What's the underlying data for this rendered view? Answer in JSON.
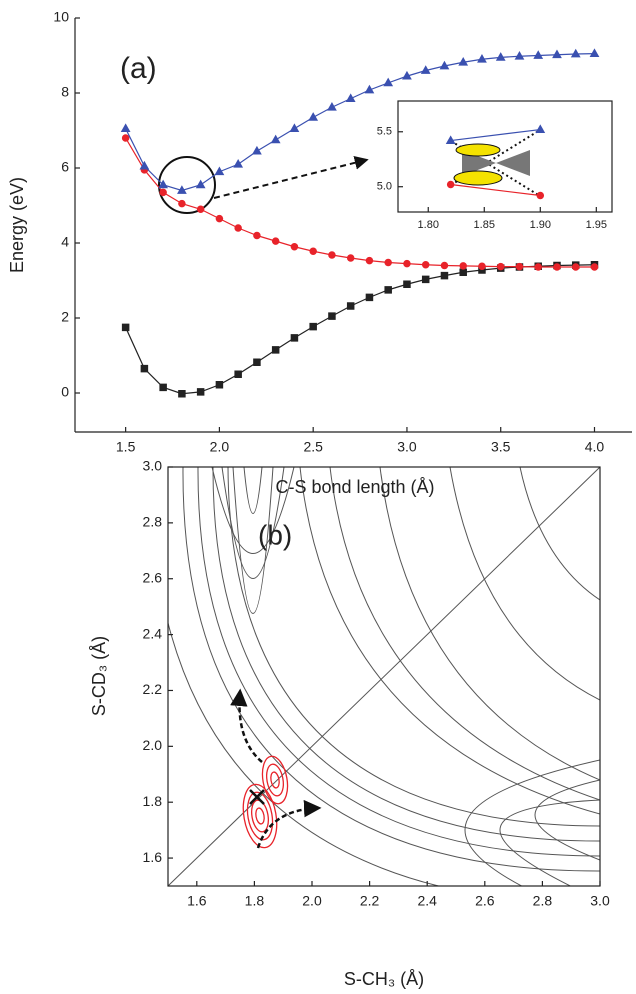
{
  "chart_data": [
    {
      "type": "line",
      "annotation": "(a)",
      "x_label": "C-S bond length (Å)",
      "y_label": "Energy (eV)",
      "x": [
        1.5,
        1.6,
        1.7,
        1.8,
        1.9,
        2.0,
        2.1,
        2.2,
        2.3,
        2.4,
        2.5,
        2.6,
        2.7,
        2.8,
        2.9,
        3.0,
        3.1,
        3.2,
        3.3,
        3.4,
        3.5,
        3.6,
        3.7,
        3.8,
        3.9,
        4.0
      ],
      "xlim": [
        1.23,
        4.2
      ],
      "ylim": [
        -1.04,
        10
      ],
      "xticks": [
        1.5,
        {
          "value": 2,
          "label": "2.0"
        },
        2.5,
        {
          "value": 3,
          "label": "3.0"
        },
        3.5,
        {
          "value": 4,
          "label": "4.0"
        }
      ],
      "yticks": [
        0,
        2,
        4,
        6,
        8,
        10
      ],
      "series": [
        {
          "color": "#222222",
          "marker": "square",
          "values": [
            1.75,
            0.65,
            0.15,
            -0.02,
            0.03,
            0.22,
            0.5,
            0.82,
            1.15,
            1.47,
            1.77,
            2.05,
            2.32,
            2.55,
            2.75,
            2.9,
            3.03,
            3.13,
            3.22,
            3.28,
            3.33,
            3.36,
            3.38,
            3.4,
            3.41,
            3.42
          ]
        },
        {
          "color": "#e8232a",
          "marker": "circle",
          "values": [
            6.8,
            5.95,
            5.35,
            5.05,
            4.9,
            4.65,
            4.4,
            4.2,
            4.05,
            3.9,
            3.78,
            3.68,
            3.6,
            3.53,
            3.48,
            3.45,
            3.42,
            3.4,
            3.39,
            3.38,
            3.37,
            3.37,
            3.36,
            3.36,
            3.36,
            3.36
          ]
        },
        {
          "color": "#3a50b0",
          "marker": "triangle",
          "values": [
            7.05,
            6.05,
            5.55,
            5.4,
            5.55,
            5.9,
            6.1,
            6.45,
            6.75,
            7.05,
            7.35,
            7.62,
            7.85,
            8.08,
            8.27,
            8.45,
            8.6,
            8.72,
            8.82,
            8.9,
            8.95,
            8.98,
            9.0,
            9.02,
            9.04,
            9.05
          ]
        }
      ]
    },
    {
      "type": "line",
      "x": [
        1.82,
        1.9
      ],
      "xlim": [
        1.773,
        1.964
      ],
      "ylim": [
        4.77,
        5.78
      ],
      "xticks": [
        {
          "value": 1.8,
          "label": "1.80"
        },
        1.85,
        {
          "value": 1.9,
          "label": "1.90"
        },
        1.95
      ],
      "yticks": [
        {
          "value": 5,
          "label": "5.0"
        },
        5.5
      ],
      "series": [
        {
          "color": "#3a50b0",
          "marker": "triangle",
          "values": [
            5.42,
            5.52
          ]
        },
        {
          "color": "#e8232a",
          "marker": "circle",
          "values": [
            5.02,
            4.92
          ]
        }
      ]
    },
    {
      "type": "contour",
      "annotation": "(b)",
      "x_label": "S-CH₃ (Å)",
      "y_label": "S-CD₃ (Å)",
      "xlim": [
        1.5,
        3.0
      ],
      "ylim": [
        1.5,
        3.0
      ],
      "xticks": [
        1.6,
        1.8,
        {
          "value": 2,
          "label": "2.0"
        },
        2.2,
        2.4,
        2.6,
        2.8,
        {
          "value": 3,
          "label": "3.0"
        }
      ],
      "yticks": [
        1.6,
        1.8,
        {
          "value": 2,
          "label": "2.0"
        },
        2.2,
        2.4,
        2.6,
        2.8,
        {
          "value": 3,
          "label": "3.0"
        }
      ]
    }
  ]
}
